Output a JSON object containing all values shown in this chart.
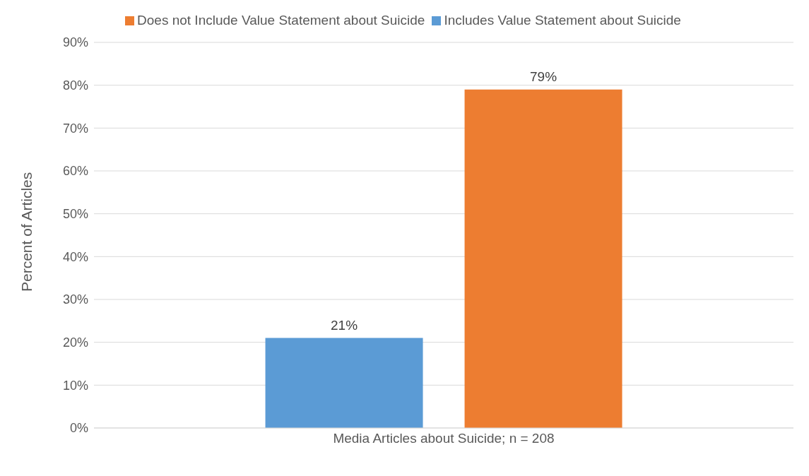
{
  "chart_data": {
    "type": "bar",
    "ylabel": "Percent of Articles",
    "categories": [
      "Media Articles about Suicide; n = 208"
    ],
    "series": [
      {
        "name": "Includes Value Statement about Suicide",
        "color": "#5b9bd5",
        "values": [
          21
        ],
        "value_labels": [
          "21%"
        ]
      },
      {
        "name": "Does not Include Value Statement about Suicide",
        "color": "#ed7d31",
        "values": [
          79
        ],
        "value_labels": [
          "79%"
        ]
      }
    ],
    "ylim": [
      0,
      90
    ],
    "yticks": [
      {
        "value": 0,
        "label": "0%"
      },
      {
        "value": 10,
        "label": "10%"
      },
      {
        "value": 20,
        "label": "20%"
      },
      {
        "value": 30,
        "label": "30%"
      },
      {
        "value": 40,
        "label": "40%"
      },
      {
        "value": 50,
        "label": "50%"
      },
      {
        "value": 60,
        "label": "60%"
      },
      {
        "value": 70,
        "label": "70%"
      },
      {
        "value": 80,
        "label": "80%"
      },
      {
        "value": 90,
        "label": "90%"
      }
    ],
    "grid": "y",
    "legend": "top"
  }
}
